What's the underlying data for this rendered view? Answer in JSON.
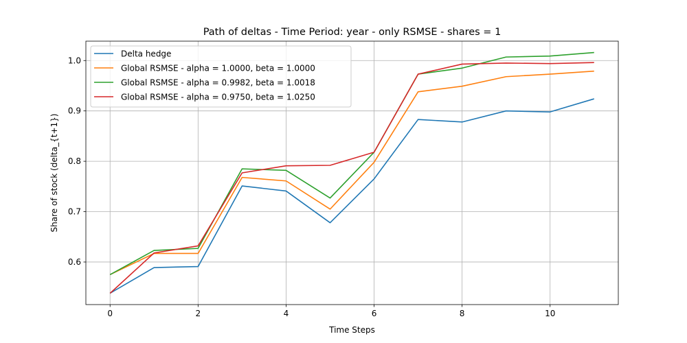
{
  "chart_data": {
    "type": "line",
    "title": "Path of deltas - Time Period: year - only RSMSE - shares = 1",
    "xlabel": "Time Steps",
    "ylabel": "Share of stock (delta_{t+1})",
    "xlim": [
      -0.55,
      11.55
    ],
    "ylim": [
      0.5155,
      1.0385
    ],
    "xticks": [
      0,
      2,
      4,
      6,
      8,
      10
    ],
    "yticks": [
      0.6,
      0.7,
      0.8,
      0.9,
      1.0
    ],
    "ytick_labels": [
      "0.6",
      "0.7",
      "0.8",
      "0.9",
      "1.0"
    ],
    "grid": true,
    "legend_position": "top-left",
    "x": [
      0,
      1,
      2,
      3,
      4,
      5,
      6,
      7,
      8,
      9,
      10,
      11
    ],
    "series": [
      {
        "name": "Delta hedge",
        "color": "#1f77b4",
        "values": [
          0.538,
          0.589,
          0.591,
          0.751,
          0.741,
          0.678,
          0.765,
          0.883,
          0.878,
          0.9,
          0.898,
          0.924
        ]
      },
      {
        "name": "Global RSMSE - alpha = 1.0000, beta = 1.0000",
        "color": "#ff7f0e",
        "values": [
          0.575,
          0.617,
          0.617,
          0.768,
          0.761,
          0.705,
          0.798,
          0.938,
          0.949,
          0.968,
          0.973,
          0.979
        ]
      },
      {
        "name": "Global RSMSE - alpha = 0.9982, beta = 1.0018",
        "color": "#2ca02c",
        "values": [
          0.575,
          0.623,
          0.627,
          0.785,
          0.782,
          0.727,
          0.818,
          0.973,
          0.985,
          1.007,
          1.009,
          1.016
        ]
      },
      {
        "name": "Global RSMSE - alpha = 0.9750, beta = 1.0250",
        "color": "#d62728",
        "values": [
          0.538,
          0.618,
          0.632,
          0.777,
          0.791,
          0.792,
          0.818,
          0.973,
          0.993,
          0.995,
          0.994,
          0.996
        ]
      }
    ]
  }
}
